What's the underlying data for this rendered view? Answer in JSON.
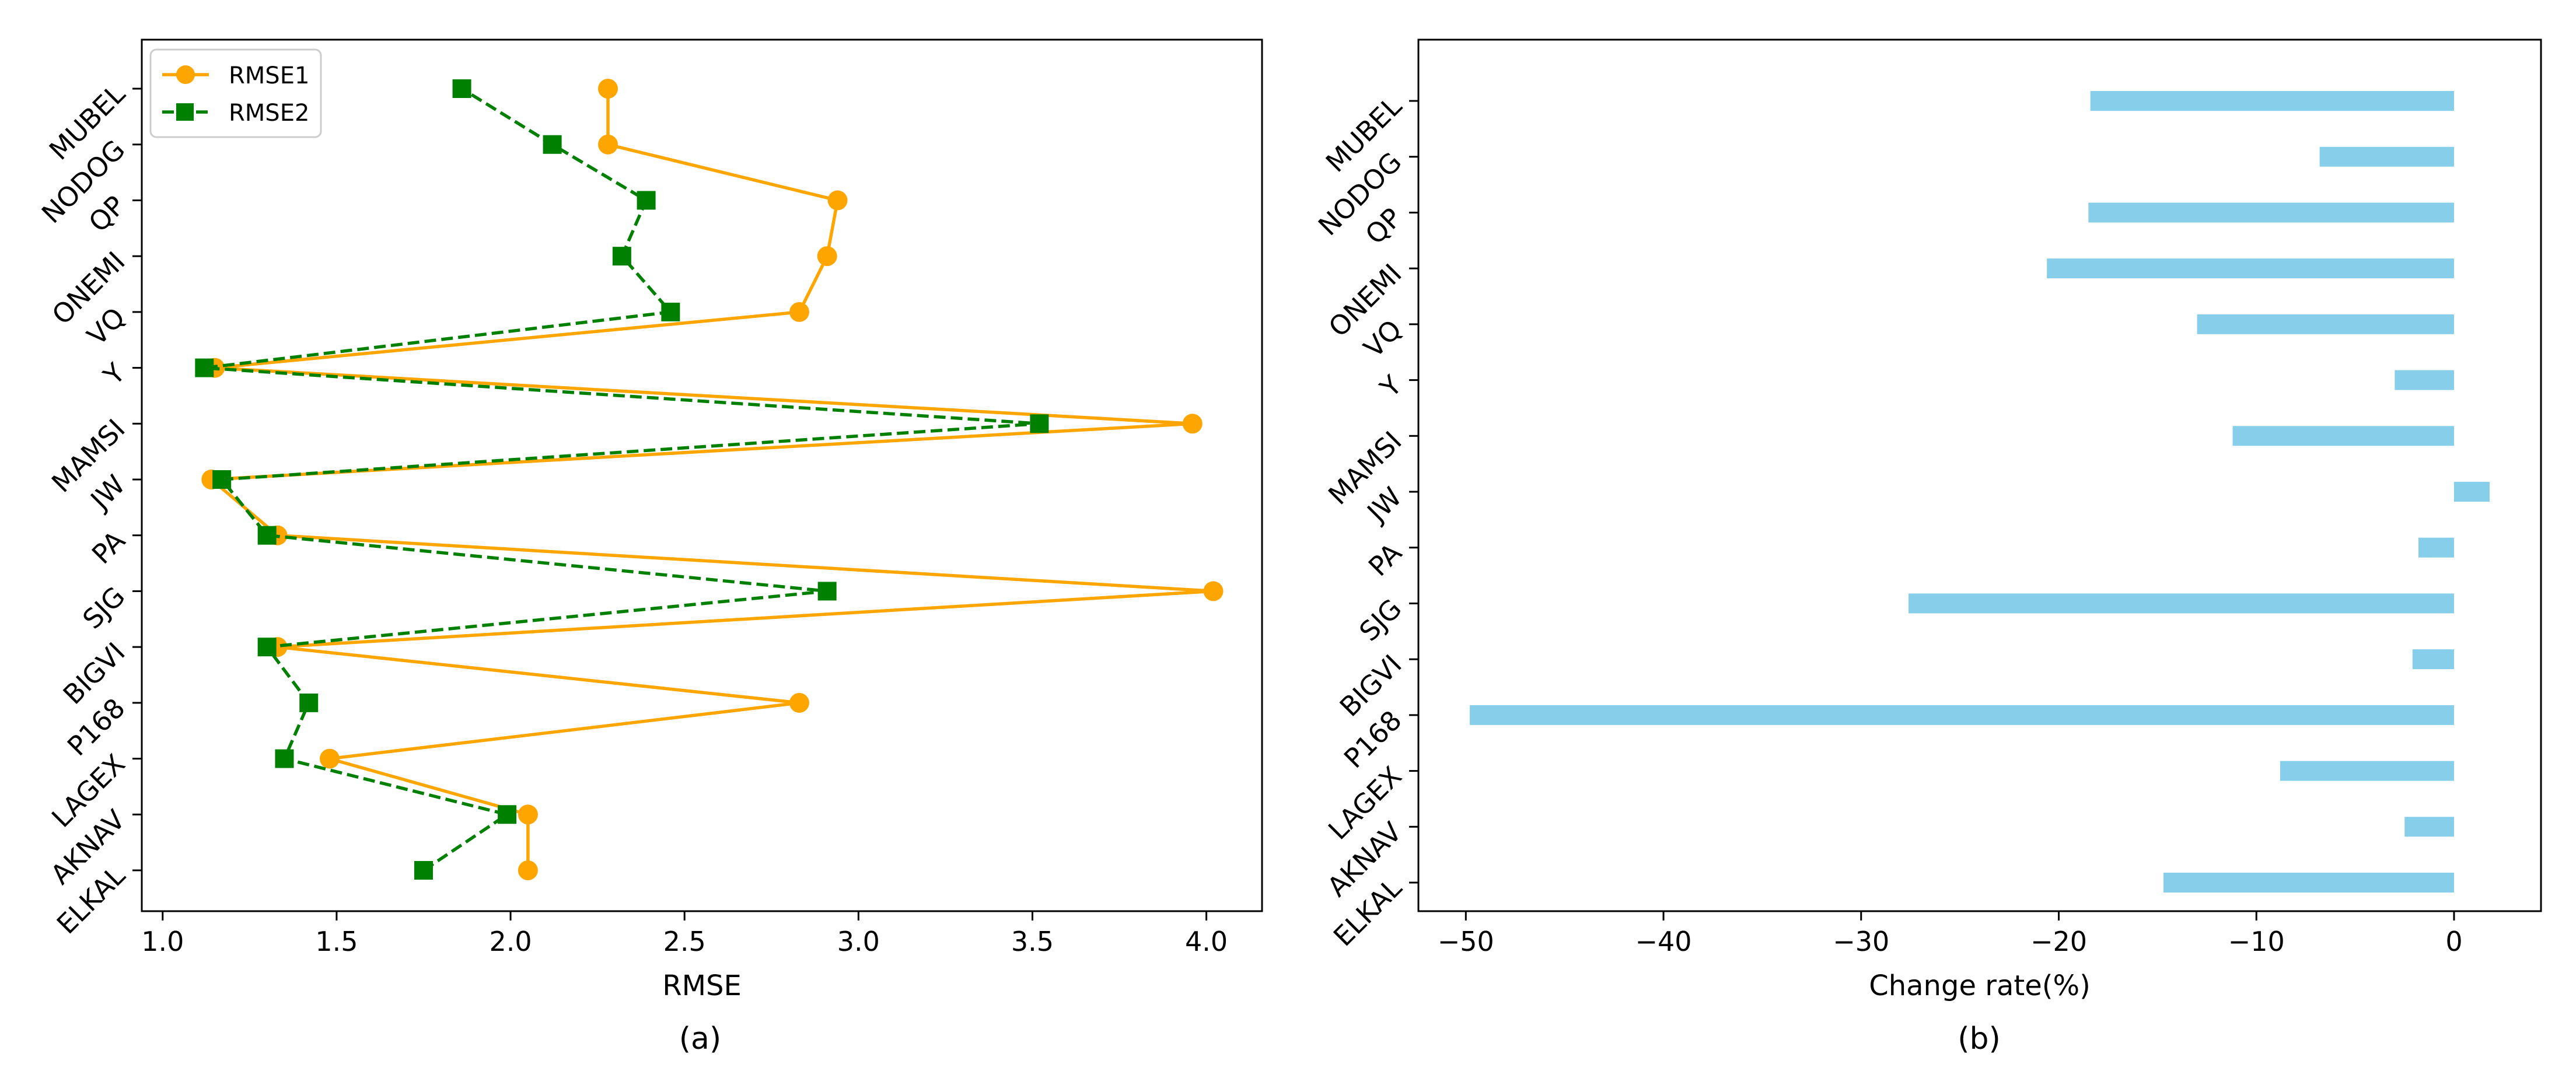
{
  "figure": {
    "panel_a_caption": "(a)",
    "panel_b_caption": "(b)"
  },
  "chart_data": [
    {
      "type": "line",
      "orientation": "horizontal",
      "title": "",
      "xlabel": "RMSE",
      "ylabel": "",
      "xlim": [
        0.94,
        4.16
      ],
      "xticks": [
        "1.0",
        "1.5",
        "2.0",
        "2.5",
        "3.0",
        "3.5",
        "4.0"
      ],
      "categories": [
        "ELKAL",
        "AKNAV",
        "LAGEX",
        "P168",
        "BIGVI",
        "SJG",
        "PA",
        "JW",
        "MAMSI",
        "Y",
        "VQ",
        "ONEMI",
        "QP",
        "NODOG",
        "MUBEL"
      ],
      "series": [
        {
          "name": "RMSE1",
          "values": [
            2.05,
            2.05,
            1.48,
            2.83,
            1.33,
            4.02,
            1.33,
            1.14,
            3.96,
            1.15,
            2.83,
            2.91,
            2.94,
            2.28,
            2.28
          ],
          "color": "#FFA500",
          "marker": "circle",
          "line": "solid"
        },
        {
          "name": "RMSE2",
          "values": [
            1.75,
            1.99,
            1.35,
            1.42,
            1.3,
            2.91,
            1.3,
            1.17,
            3.52,
            1.12,
            2.46,
            2.32,
            2.39,
            2.12,
            1.86
          ],
          "color": "#008000",
          "marker": "square",
          "line": "dashed"
        }
      ],
      "legend": "top-left",
      "grid": false
    },
    {
      "type": "bar",
      "orientation": "horizontal",
      "title": "",
      "xlabel": "Change rate(%)",
      "ylabel": "",
      "xlim": [
        -52.4,
        4.4
      ],
      "xticks": [
        "−50",
        "−40",
        "−30",
        "−20",
        "−10",
        "0"
      ],
      "categories": [
        "ELKAL",
        "AKNAV",
        "LAGEX",
        "P168",
        "BIGVI",
        "SJG",
        "PA",
        "JW",
        "MAMSI",
        "Y",
        "VQ",
        "ONEMI",
        "QP",
        "NODOG",
        "MUBEL"
      ],
      "values": [
        -14.7,
        -2.5,
        -8.8,
        -49.8,
        -2.1,
        -27.6,
        -1.8,
        1.8,
        -11.2,
        -3.0,
        -13.0,
        -20.6,
        -18.5,
        -6.8,
        -18.4
      ],
      "color": "#87CEEB",
      "grid": false
    }
  ]
}
